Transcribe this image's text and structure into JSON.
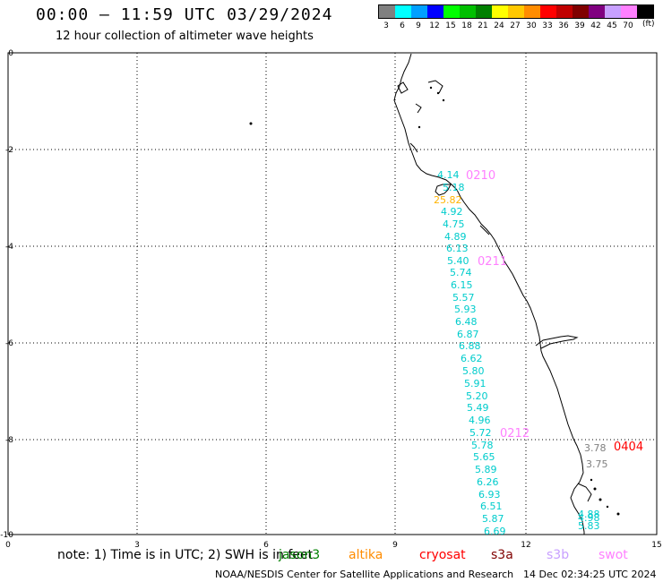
{
  "header": {
    "title": "00:00 – 11:59 UTC 03/29/2024",
    "subtitle": "12 hour collection of altimeter wave heights"
  },
  "scale": {
    "unit": "(ft)",
    "bins": [
      {
        "label": "3",
        "color": "#808080"
      },
      {
        "label": "6",
        "color": "#00ffff"
      },
      {
        "label": "9",
        "color": "#00a0ff"
      },
      {
        "label": "12",
        "color": "#0000ff"
      },
      {
        "label": "15",
        "color": "#00ff00"
      },
      {
        "label": "18",
        "color": "#00c000"
      },
      {
        "label": "21",
        "color": "#008000"
      },
      {
        "label": "24",
        "color": "#ffff00"
      },
      {
        "label": "27",
        "color": "#ffc800"
      },
      {
        "label": "30",
        "color": "#ff8c00"
      },
      {
        "label": "33",
        "color": "#ff0000"
      },
      {
        "label": "36",
        "color": "#c00000"
      },
      {
        "label": "39",
        "color": "#800000"
      },
      {
        "label": "42",
        "color": "#800080"
      },
      {
        "label": "45",
        "color": "#c8a0ff"
      },
      {
        "label": "70",
        "color": "#ff80ff"
      },
      {
        "label": "",
        "color": "#000000"
      }
    ]
  },
  "map": {
    "lon_ticks": [
      "0",
      "3",
      "6",
      "9",
      "12",
      "15"
    ],
    "lat_ticks": [
      "0",
      "-2",
      "-4",
      "-6",
      "-8",
      "-10"
    ]
  },
  "track_labels": [
    {
      "text": "0210",
      "color": "#ff80ff"
    },
    {
      "text": "0211",
      "color": "#ff80ff"
    },
    {
      "text": "0212",
      "color": "#ff80ff"
    },
    {
      "text": "0404",
      "color": "#ff0000"
    }
  ],
  "measurements": [
    {
      "v": "4.14",
      "c": "#00cccc"
    },
    {
      "v": "5.18",
      "c": "#00cccc"
    },
    {
      "v": "25.82",
      "c": "#ffb400"
    },
    {
      "v": "4.92",
      "c": "#00cccc"
    },
    {
      "v": "4.75",
      "c": "#00cccc"
    },
    {
      "v": "4.89",
      "c": "#00cccc"
    },
    {
      "v": "6.13",
      "c": "#00cccc"
    },
    {
      "v": "5.40",
      "c": "#00cccc"
    },
    {
      "v": "5.74",
      "c": "#00cccc"
    },
    {
      "v": "6.15",
      "c": "#00cccc"
    },
    {
      "v": "5.57",
      "c": "#00cccc"
    },
    {
      "v": "5.93",
      "c": "#00cccc"
    },
    {
      "v": "6.48",
      "c": "#00cccc"
    },
    {
      "v": "6.87",
      "c": "#00cccc"
    },
    {
      "v": "6.88",
      "c": "#00cccc"
    },
    {
      "v": "6.62",
      "c": "#00cccc"
    },
    {
      "v": "5.80",
      "c": "#00cccc"
    },
    {
      "v": "5.91",
      "c": "#00cccc"
    },
    {
      "v": "5.20",
      "c": "#00cccc"
    },
    {
      "v": "5.49",
      "c": "#00cccc"
    },
    {
      "v": "4.96",
      "c": "#00cccc"
    },
    {
      "v": "5.72",
      "c": "#00cccc"
    },
    {
      "v": "5.78",
      "c": "#00cccc"
    },
    {
      "v": "5.65",
      "c": "#00cccc"
    },
    {
      "v": "5.89",
      "c": "#00cccc"
    },
    {
      "v": "6.26",
      "c": "#00cccc"
    },
    {
      "v": "6.93",
      "c": "#00cccc"
    },
    {
      "v": "6.51",
      "c": "#00cccc"
    },
    {
      "v": "5.87",
      "c": "#00cccc"
    },
    {
      "v": "6.69",
      "c": "#00cccc"
    },
    {
      "v": "3.78",
      "c": "#808080"
    },
    {
      "v": "3.75",
      "c": "#808080"
    },
    {
      "v": "4.88",
      "c": "#00cccc"
    },
    {
      "v": "4.98",
      "c": "#00cccc"
    },
    {
      "v": "5.83",
      "c": "#00cccc"
    }
  ],
  "footer": {
    "note": "note:  1) Time is in UTC;  2) SWH is in feet",
    "legend": [
      {
        "name": "jason3",
        "color": "#008000"
      },
      {
        "name": "altika",
        "color": "#ff8c00"
      },
      {
        "name": "cryosat",
        "color": "#ff0000"
      },
      {
        "name": "s3a",
        "color": "#800000"
      },
      {
        "name": "s3b",
        "color": "#c8a0ff"
      },
      {
        "name": "swot",
        "color": "#ff80ff"
      }
    ],
    "credit": "NOAA/NESDIS Center for Satellite Applications and Research",
    "timestamp": "14 Dec 02:34:25 UTC 2024"
  }
}
